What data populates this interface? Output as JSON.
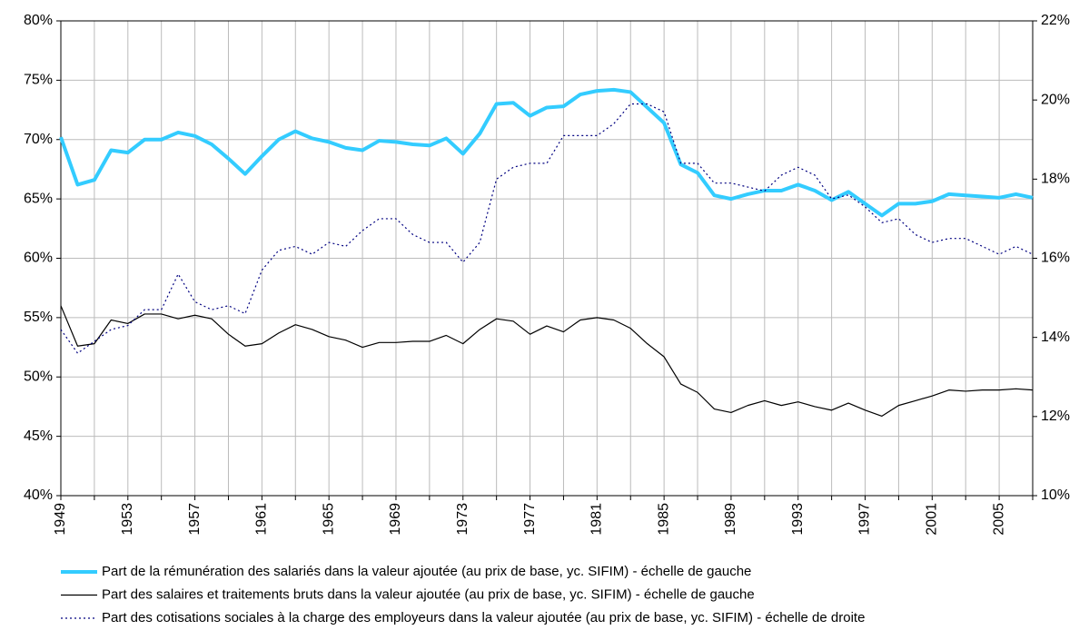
{
  "chart_data": {
    "type": "line",
    "x": [
      1949,
      1950,
      1951,
      1952,
      1953,
      1954,
      1955,
      1956,
      1957,
      1958,
      1959,
      1960,
      1961,
      1962,
      1963,
      1964,
      1965,
      1966,
      1967,
      1968,
      1969,
      1970,
      1971,
      1972,
      1973,
      1974,
      1975,
      1976,
      1977,
      1978,
      1979,
      1980,
      1981,
      1982,
      1983,
      1984,
      1985,
      1986,
      1987,
      1988,
      1989,
      1990,
      1991,
      1992,
      1993,
      1994,
      1995,
      1996,
      1997,
      1998,
      1999,
      2000,
      2001,
      2002,
      2003,
      2004,
      2005,
      2006,
      2007
    ],
    "xlim": [
      1949,
      2007
    ],
    "xticks": [
      1949,
      1953,
      1957,
      1961,
      1965,
      1969,
      1973,
      1977,
      1981,
      1985,
      1989,
      1993,
      1997,
      2001,
      2005
    ],
    "xminor": [
      1951,
      1955,
      1959,
      1963,
      1967,
      1971,
      1975,
      1979,
      1983,
      1987,
      1991,
      1995,
      1999,
      2003,
      2007
    ],
    "ylim": [
      40,
      80
    ],
    "yticks": [
      {
        "value": 40,
        "label": "40%"
      },
      {
        "value": 45,
        "label": "45%"
      },
      {
        "value": 50,
        "label": "50%"
      },
      {
        "value": 55,
        "label": "55%"
      },
      {
        "value": 60,
        "label": "60%"
      },
      {
        "value": 65,
        "label": "65%"
      },
      {
        "value": 70,
        "label": "70%"
      },
      {
        "value": 75,
        "label": "75%"
      },
      {
        "value": 80,
        "label": "80%"
      }
    ],
    "y2lim": [
      10,
      22
    ],
    "y2ticks": [
      {
        "value": 10,
        "label": "10%"
      },
      {
        "value": 12,
        "label": "12%"
      },
      {
        "value": 14,
        "label": "14%"
      },
      {
        "value": 16,
        "label": "16%"
      },
      {
        "value": 18,
        "label": "18%"
      },
      {
        "value": 20,
        "label": "20%"
      },
      {
        "value": 22,
        "label": "22%"
      }
    ],
    "grid": true,
    "legend": "bottom",
    "series": [
      {
        "name": "Part de la rémunération des salariés dans la valeur ajoutée (au prix de base, yc. SIFIM) - échelle de gauche",
        "color": "#33ccff",
        "width": 4,
        "dash": "solid",
        "values": [
          70.2,
          66.2,
          66.6,
          69.1,
          68.9,
          70.0,
          70.0,
          70.6,
          70.3,
          69.6,
          68.4,
          67.1,
          68.6,
          70.0,
          70.7,
          70.1,
          69.8,
          69.3,
          69.1,
          69.9,
          69.8,
          69.6,
          69.5,
          70.1,
          68.8,
          70.5,
          73.0,
          73.1,
          72.0,
          72.7,
          72.8,
          73.8,
          74.1,
          74.2,
          74.0,
          72.7,
          71.4,
          67.9,
          67.2,
          65.3,
          65.0,
          65.4,
          65.7,
          65.7,
          66.2,
          65.7,
          64.9,
          65.6,
          64.6,
          63.6,
          64.6,
          64.6,
          64.8,
          65.4,
          65.3,
          65.2,
          65.1,
          65.4,
          65.1
        ]
      },
      {
        "name": "Part des salaires et traitements bruts  dans la valeur ajoutée (au prix de base, yc. SIFIM) - échelle de gauche",
        "color": "#000000",
        "width": 1.2,
        "dash": "solid",
        "values": [
          56.0,
          52.6,
          52.8,
          54.8,
          54.5,
          55.3,
          55.3,
          54.9,
          55.2,
          54.9,
          53.6,
          52.6,
          52.8,
          53.7,
          54.4,
          54.0,
          53.4,
          53.1,
          52.5,
          52.9,
          52.9,
          53.0,
          53.0,
          53.5,
          52.8,
          54.0,
          54.9,
          54.7,
          53.6,
          54.3,
          53.8,
          54.8,
          55.0,
          54.8,
          54.1,
          52.8,
          51.7,
          49.4,
          48.7,
          47.3,
          47.0,
          47.6,
          48.0,
          47.6,
          47.9,
          47.5,
          47.2,
          47.8,
          47.2,
          46.7,
          47.6,
          48.0,
          48.4,
          48.9,
          48.8,
          48.9,
          48.9,
          49.0,
          48.9
        ]
      },
      {
        "name": "Part des cotisations sociales à la charge des employeurs dans la valeur ajoutée (au prix de base, yc. SIFIM) - échelle de droite",
        "color": "#000080",
        "width": 1.2,
        "dash": "dotted",
        "axis": "y2",
        "values": [
          14.2,
          13.6,
          13.9,
          14.2,
          14.3,
          14.7,
          14.7,
          15.6,
          14.9,
          14.7,
          14.8,
          14.6,
          15.7,
          16.2,
          16.3,
          16.1,
          16.4,
          16.3,
          16.7,
          17.0,
          17.0,
          16.6,
          16.4,
          16.4,
          15.9,
          16.4,
          18.0,
          18.3,
          18.4,
          18.4,
          19.1,
          19.1,
          19.1,
          19.4,
          19.9,
          19.9,
          19.7,
          18.4,
          18.4,
          17.9,
          17.9,
          17.8,
          17.7,
          18.1,
          18.3,
          18.1,
          17.5,
          17.6,
          17.3,
          16.9,
          17.0,
          16.6,
          16.4,
          16.5,
          16.5,
          16.3,
          16.1,
          16.3,
          16.1
        ]
      }
    ]
  }
}
